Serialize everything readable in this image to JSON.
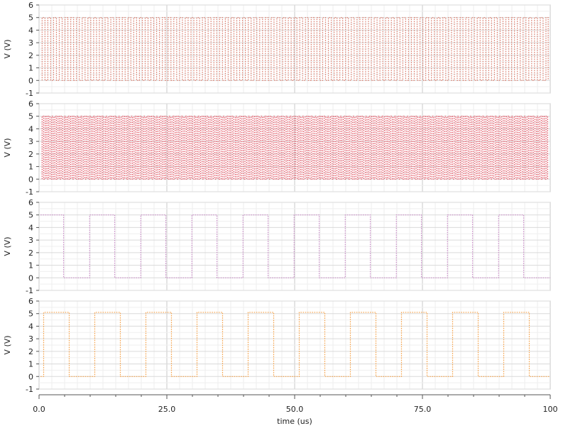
{
  "chart_data": [
    {
      "type": "line",
      "ylabel": "V (V)",
      "ylim": [
        -1,
        6
      ],
      "yticks": [
        "6",
        "5",
        "4",
        "3",
        "2",
        "1",
        "0",
        "-1"
      ],
      "xlim": [
        0,
        100
      ],
      "grid": true,
      "series": [
        {
          "color": "#d97a6a",
          "style": "dotted",
          "kind": "square-wave",
          "period_us": 1.12,
          "duty": 0.5,
          "low_v": 0,
          "high_v": 5,
          "start_us": 0.6,
          "end_us": 99.6
        }
      ]
    },
    {
      "type": "line",
      "ylabel": "V (V)",
      "ylim": [
        -1,
        6
      ],
      "yticks": [
        "6",
        "5",
        "4",
        "3",
        "2",
        "1",
        "0",
        "-1"
      ],
      "xlim": [
        0,
        100
      ],
      "grid": true,
      "series": [
        {
          "color": "#e04a5a",
          "style": "dotted",
          "kind": "square-wave",
          "period_us": 0.62,
          "duty": 0.5,
          "low_v": 0,
          "high_v": 5,
          "start_us": 0.6,
          "end_us": 99.6
        }
      ]
    },
    {
      "type": "line",
      "ylabel": "V (V)",
      "ylim": [
        -1,
        6
      ],
      "yticks": [
        "6",
        "5",
        "4",
        "3",
        "2",
        "1",
        "0",
        "-1"
      ],
      "xlim": [
        0,
        100
      ],
      "grid": true,
      "series": [
        {
          "color": "#c98ec8",
          "style": "dotted",
          "kind": "edges",
          "points": [
            [
              0.3,
              5
            ],
            [
              4.8,
              5
            ],
            [
              4.8,
              0
            ],
            [
              9.9,
              0
            ],
            [
              9.9,
              5
            ],
            [
              14.8,
              5
            ],
            [
              14.8,
              0
            ],
            [
              19.9,
              0
            ],
            [
              19.9,
              5
            ],
            [
              24.8,
              5
            ],
            [
              24.8,
              0
            ],
            [
              29.9,
              0
            ],
            [
              29.9,
              5
            ],
            [
              34.8,
              5
            ],
            [
              34.8,
              0
            ],
            [
              39.9,
              0
            ],
            [
              39.9,
              5
            ],
            [
              44.8,
              5
            ],
            [
              44.8,
              0
            ],
            [
              49.9,
              0
            ],
            [
              49.9,
              5
            ],
            [
              54.8,
              5
            ],
            [
              54.8,
              0
            ],
            [
              59.9,
              0
            ],
            [
              59.9,
              5
            ],
            [
              64.8,
              5
            ],
            [
              64.8,
              0
            ],
            [
              69.9,
              0
            ],
            [
              69.9,
              5
            ],
            [
              74.8,
              5
            ],
            [
              74.8,
              0
            ],
            [
              79.9,
              0
            ],
            [
              79.9,
              5
            ],
            [
              84.8,
              5
            ],
            [
              84.8,
              0
            ],
            [
              89.9,
              0
            ],
            [
              89.9,
              5
            ],
            [
              94.8,
              5
            ],
            [
              94.8,
              0
            ],
            [
              100,
              0
            ]
          ]
        }
      ]
    },
    {
      "type": "line",
      "ylabel": "V (V)",
      "xlabel": "time (us)",
      "ylim": [
        -1,
        6
      ],
      "yticks": [
        "6",
        "5",
        "4",
        "3",
        "2",
        "1",
        "0",
        "-1"
      ],
      "xlim": [
        0,
        100
      ],
      "xticks": [
        {
          "value": 0,
          "label": "0.0"
        },
        {
          "value": 25,
          "label": "25.0"
        },
        {
          "value": 50,
          "label": "50.0"
        },
        {
          "value": 75,
          "label": "75.0"
        },
        {
          "value": 100,
          "label": "100"
        }
      ],
      "grid": true,
      "series": [
        {
          "color": "#f5a24a",
          "style": "dotted",
          "kind": "edges",
          "points": [
            [
              0.3,
              0
            ],
            [
              0.9,
              0
            ],
            [
              0.9,
              5.1
            ],
            [
              5.9,
              5.1
            ],
            [
              5.9,
              0
            ],
            [
              10.9,
              0
            ],
            [
              10.9,
              5.1
            ],
            [
              15.9,
              5.1
            ],
            [
              15.9,
              0
            ],
            [
              20.9,
              0
            ],
            [
              20.9,
              5.1
            ],
            [
              25.9,
              5.1
            ],
            [
              25.9,
              0
            ],
            [
              30.9,
              0
            ],
            [
              30.9,
              5.1
            ],
            [
              35.9,
              5.1
            ],
            [
              35.9,
              0
            ],
            [
              40.9,
              0
            ],
            [
              40.9,
              5.1
            ],
            [
              45.9,
              5.1
            ],
            [
              45.9,
              0
            ],
            [
              50.9,
              0
            ],
            [
              50.9,
              5.1
            ],
            [
              55.9,
              5.1
            ],
            [
              55.9,
              0
            ],
            [
              60.9,
              0
            ],
            [
              60.9,
              5.1
            ],
            [
              65.9,
              5.1
            ],
            [
              65.9,
              0
            ],
            [
              70.9,
              0
            ],
            [
              70.9,
              5.1
            ],
            [
              75.9,
              5.1
            ],
            [
              75.9,
              0
            ],
            [
              80.9,
              0
            ],
            [
              80.9,
              5.1
            ],
            [
              85.9,
              5.1
            ],
            [
              85.9,
              0
            ],
            [
              90.9,
              0
            ],
            [
              90.9,
              5.1
            ],
            [
              95.9,
              5.1
            ],
            [
              95.9,
              0
            ],
            [
              100,
              0
            ]
          ]
        }
      ]
    }
  ]
}
